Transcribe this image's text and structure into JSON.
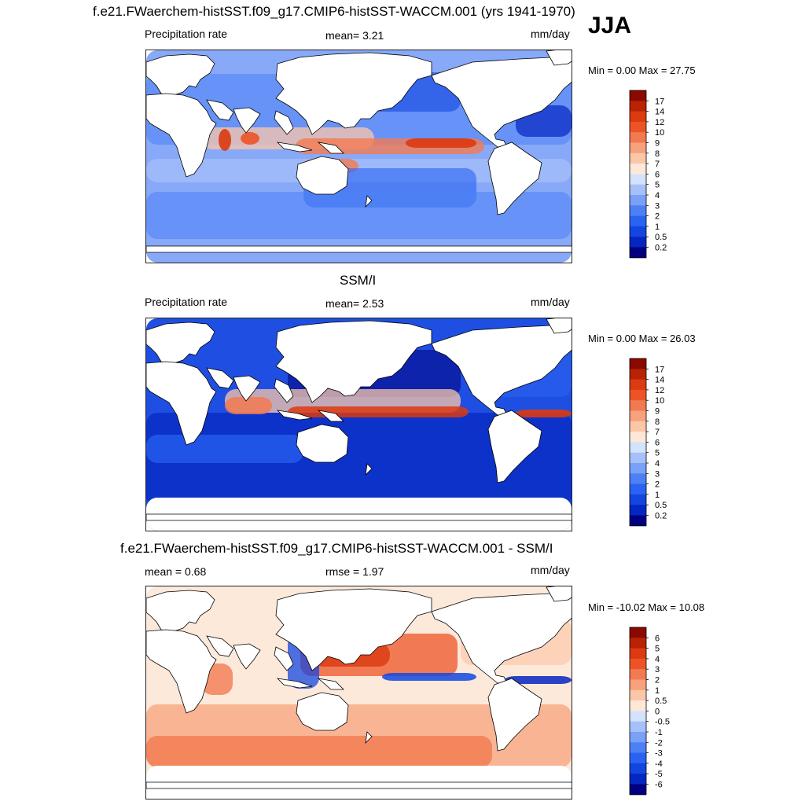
{
  "season": "JJA",
  "colors": {
    "abs_scale": [
      "#000080",
      "#0526c0",
      "#1346e0",
      "#2a63f2",
      "#4d80f5",
      "#7aa0f7",
      "#a6c1f9",
      "#d4e3fb",
      "#fde8d8",
      "#fbc7a9",
      "#f7a27c",
      "#f27a50",
      "#ec5428",
      "#dc3a10",
      "#b82205",
      "#8a0a00"
    ],
    "diff_scale": [
      "#000080",
      "#0526c0",
      "#1346e0",
      "#2a63f2",
      "#4d80f5",
      "#7aa0f7",
      "#a6c1f9",
      "#d4e3fb",
      "#fde8d8",
      "#fbc7a9",
      "#f7a27c",
      "#f27a50",
      "#ec5428",
      "#dc3a10",
      "#b82205",
      "#8a0a00"
    ],
    "land": "#ffffff",
    "coast": "#000000"
  },
  "panels": [
    {
      "id": "model",
      "title": "f.e21.FWaerchem-histSST.f09_g17.CMIP6-histSST-WACCM.001 (yrs 1941-1970)",
      "left_label": "Precipitation rate",
      "center_label": "mean=   3.21",
      "right_label": "mm/day",
      "minmax": "Min =   0.00 Max =  27.75",
      "ticks": [
        "17",
        "14",
        "12",
        "10",
        "9",
        "8",
        "7",
        "6",
        "5",
        "4",
        "3",
        "2",
        "1",
        "0.5",
        "0.2"
      ]
    },
    {
      "id": "obs",
      "title": "SSM/I",
      "left_label": "Precipitation rate",
      "center_label": "mean=   2.53",
      "right_label": "mm/day",
      "minmax": "Min =   0.00 Max =  26.03",
      "ticks": [
        "17",
        "14",
        "12",
        "10",
        "9",
        "8",
        "7",
        "6",
        "5",
        "4",
        "3",
        "2",
        "1",
        "0.5",
        "0.2"
      ]
    },
    {
      "id": "diff",
      "title": "f.e21.FWaerchem-histSST.f09_g17.CMIP6-histSST-WACCM.001 - SSM/I",
      "left_label": "mean =   0.68",
      "center_label": "rmse =   1.97",
      "right_label": "mm/day",
      "minmax": "Min = -10.02 Max =  10.08",
      "ticks": [
        "6",
        "5",
        "4",
        "3",
        "2",
        "1",
        "0.5",
        "0",
        "-0.5",
        "-1",
        "-2",
        "-3",
        "-4",
        "-5",
        "-6"
      ]
    }
  ]
}
